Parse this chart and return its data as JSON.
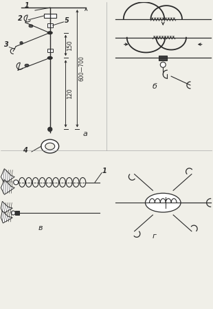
{
  "bg_color": "#f0efe8",
  "lc": "#2a2a2a",
  "label_1": "1",
  "label_2": "2",
  "label_3": "3",
  "label_4": "4",
  "label_5": "5",
  "label_a": "а",
  "label_b": "б",
  "label_v": "в",
  "label_g": "г",
  "dim_150": "150",
  "dim_120": "120",
  "dim_600": "600—700"
}
